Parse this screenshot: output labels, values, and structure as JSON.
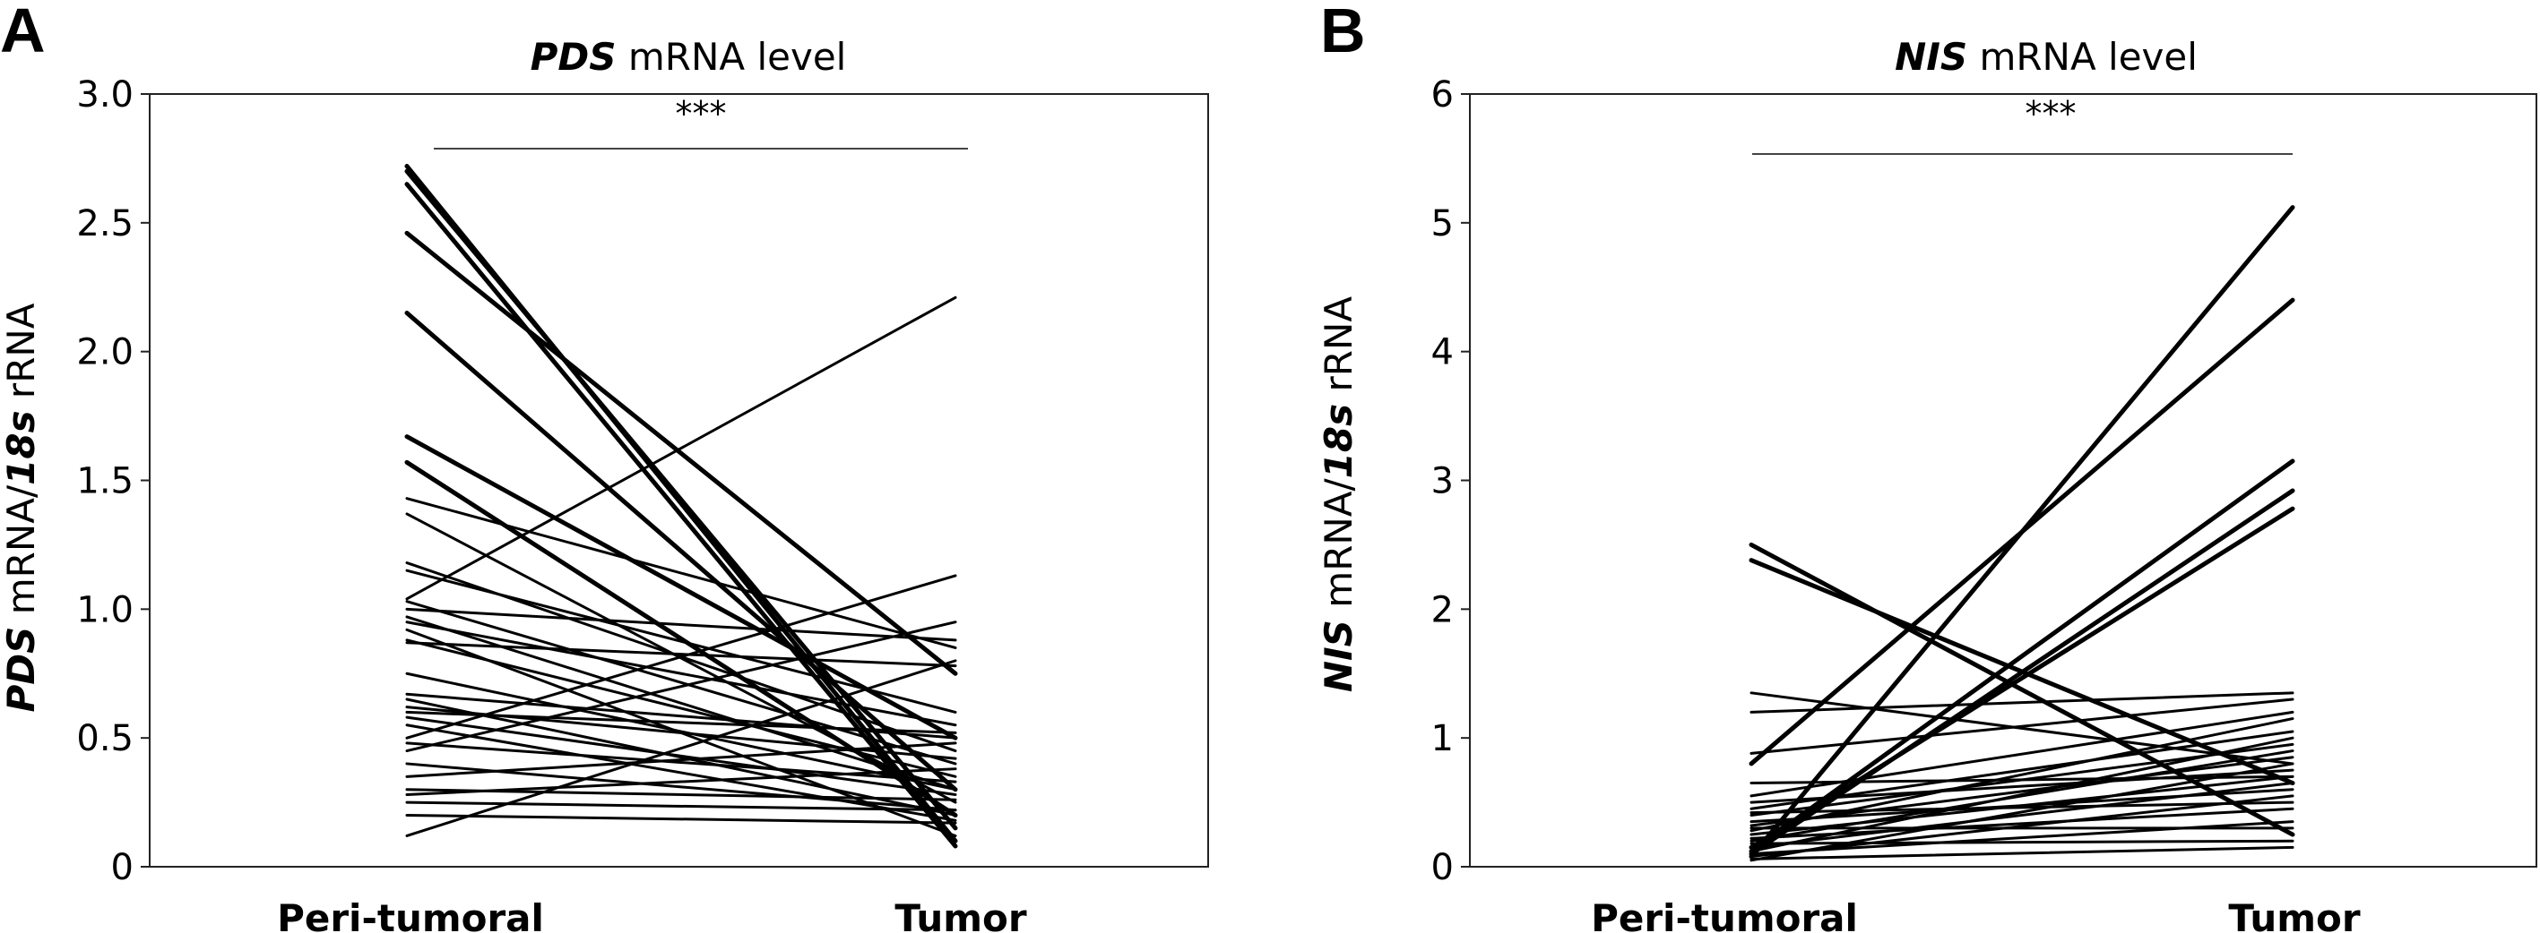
{
  "chart_data": [
    {
      "panel_label": "A",
      "type": "line",
      "title_italic": "PDS",
      "title_rest": " mRNA level",
      "ylabel_italic_1": "PDS",
      "ylabel_mid": " mRNA/",
      "ylabel_italic_2": "18s",
      "ylabel_rest": " rRNA",
      "categories": [
        "Peri-tumoral",
        "Tumor"
      ],
      "ylim": [
        0,
        3.0
      ],
      "yticks": [
        "0",
        "0.5",
        "1.0",
        "1.5",
        "2.0",
        "2.5",
        "3.0"
      ],
      "significance": "***",
      "legend": false,
      "grid": false,
      "series": [
        {
          "values": [
            2.72,
            0.1
          ],
          "weight": "bold"
        },
        {
          "values": [
            2.7,
            0.15
          ],
          "weight": "bold"
        },
        {
          "values": [
            2.65,
            0.08
          ],
          "weight": "bold"
        },
        {
          "values": [
            2.46,
            0.75
          ],
          "weight": "bold"
        },
        {
          "values": [
            2.15,
            0.3
          ],
          "weight": "bold"
        },
        {
          "values": [
            1.67,
            0.5
          ],
          "weight": "bold"
        },
        {
          "values": [
            1.57,
            0.2
          ],
          "weight": "bold"
        },
        {
          "values": [
            1.43,
            0.85
          ]
        },
        {
          "values": [
            1.37,
            0.25
          ]
        },
        {
          "values": [
            1.18,
            0.45
          ]
        },
        {
          "values": [
            1.15,
            0.6
          ]
        },
        {
          "values": [
            1.04,
            2.21
          ]
        },
        {
          "values": [
            1.03,
            0.4
          ]
        },
        {
          "values": [
            1.0,
            0.88
          ]
        },
        {
          "values": [
            0.97,
            0.3
          ]
        },
        {
          "values": [
            0.95,
            0.55
          ]
        },
        {
          "values": [
            0.92,
            0.12
          ]
        },
        {
          "values": [
            0.88,
            0.35
          ]
        },
        {
          "values": [
            0.67,
            0.5
          ]
        },
        {
          "values": [
            0.65,
            0.2
          ]
        },
        {
          "values": [
            0.62,
            0.42
          ]
        },
        {
          "values": [
            0.6,
            0.52
          ]
        },
        {
          "values": [
            0.58,
            0.28
          ]
        },
        {
          "values": [
            0.55,
            0.18
          ]
        },
        {
          "values": [
            0.5,
            1.13
          ]
        },
        {
          "values": [
            0.48,
            0.33
          ]
        },
        {
          "values": [
            0.45,
            0.95
          ]
        },
        {
          "values": [
            0.4,
            0.22
          ]
        },
        {
          "values": [
            0.35,
            0.48
          ]
        },
        {
          "values": [
            0.3,
            0.26
          ]
        },
        {
          "values": [
            0.28,
            0.38
          ]
        },
        {
          "values": [
            0.25,
            0.22
          ]
        },
        {
          "values": [
            0.2,
            0.17
          ]
        },
        {
          "values": [
            0.12,
            0.8
          ]
        },
        {
          "values": [
            0.87,
            0.78
          ]
        },
        {
          "values": [
            0.75,
            0.3
          ]
        }
      ]
    },
    {
      "panel_label": "B",
      "type": "line",
      "title_italic": "NIS",
      "title_rest": " mRNA level",
      "ylabel_italic_1": "NIS",
      "ylabel_mid": " mRNA/",
      "ylabel_italic_2": "18s",
      "ylabel_rest": " rRNA",
      "categories": [
        "Peri-tumoral",
        "Tumor"
      ],
      "ylim": [
        0,
        6
      ],
      "yticks": [
        "0",
        "1",
        "2",
        "3",
        "4",
        "5",
        "6"
      ],
      "significance": "***",
      "legend": false,
      "grid": false,
      "series": [
        {
          "values": [
            0.08,
            5.12
          ],
          "weight": "bold"
        },
        {
          "values": [
            0.8,
            4.4
          ],
          "weight": "bold"
        },
        {
          "values": [
            0.12,
            3.15
          ],
          "weight": "bold"
        },
        {
          "values": [
            0.1,
            2.92
          ],
          "weight": "bold"
        },
        {
          "values": [
            0.15,
            2.78
          ],
          "weight": "bold"
        },
        {
          "values": [
            2.5,
            0.25
          ],
          "weight": "bold"
        },
        {
          "values": [
            2.38,
            0.65
          ],
          "weight": "bold"
        },
        {
          "values": [
            1.35,
            0.8
          ]
        },
        {
          "values": [
            1.2,
            1.35
          ]
        },
        {
          "values": [
            0.88,
            1.3
          ]
        },
        {
          "values": [
            0.55,
            1.2
          ]
        },
        {
          "values": [
            0.5,
            0.75
          ]
        },
        {
          "values": [
            0.45,
            1.05
          ]
        },
        {
          "values": [
            0.42,
            0.5
          ]
        },
        {
          "values": [
            0.4,
            0.95
          ]
        },
        {
          "values": [
            0.35,
            0.6
          ]
        },
        {
          "values": [
            0.32,
            0.85
          ]
        },
        {
          "values": [
            0.3,
            0.3
          ]
        },
        {
          "values": [
            0.28,
            1.15
          ]
        },
        {
          "values": [
            0.25,
            0.7
          ]
        },
        {
          "values": [
            0.22,
            0.45
          ]
        },
        {
          "values": [
            0.2,
            0.9
          ]
        },
        {
          "values": [
            0.18,
            0.2
          ]
        },
        {
          "values": [
            0.15,
            0.65
          ]
        },
        {
          "values": [
            0.12,
            1.0
          ]
        },
        {
          "values": [
            0.1,
            0.35
          ]
        },
        {
          "values": [
            0.08,
            0.55
          ]
        },
        {
          "values": [
            0.06,
            0.15
          ]
        },
        {
          "values": [
            0.05,
            0.8
          ]
        },
        {
          "values": [
            0.65,
            0.7
          ]
        }
      ]
    }
  ]
}
